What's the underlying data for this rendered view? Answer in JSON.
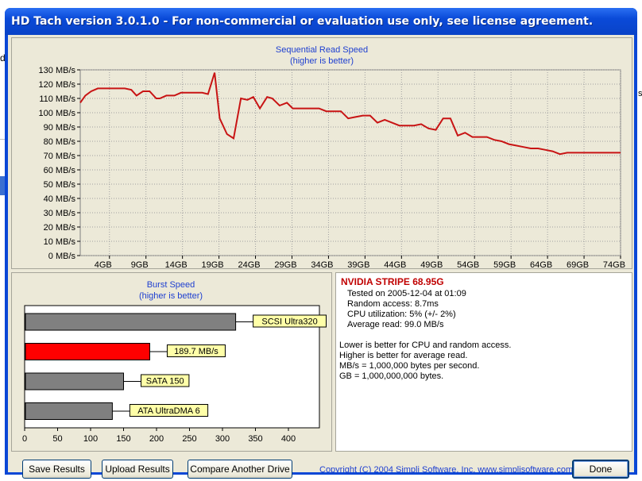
{
  "window": {
    "title": "HD Tach version 3.0.1.0  - For non-commercial or evaluation use only, see license agreement."
  },
  "sequential_chart": {
    "title": "Sequential Read Speed",
    "subtitle": "(higher is better)"
  },
  "burst_chart": {
    "title": "Burst Speed",
    "subtitle": "(higher is better)"
  },
  "chart_data": [
    {
      "type": "line",
      "title": "Sequential Read Speed",
      "subtitle": "(higher is better)",
      "xlabel": "",
      "ylabel": "",
      "xlim": [
        0,
        74
      ],
      "ylim": [
        0,
        130
      ],
      "x_ticks": [
        "4GB",
        "9GB",
        "14GB",
        "19GB",
        "24GB",
        "29GB",
        "34GB",
        "39GB",
        "44GB",
        "49GB",
        "54GB",
        "59GB",
        "64GB",
        "69GB",
        "74GB"
      ],
      "x_tick_values": [
        4,
        9,
        14,
        19,
        24,
        29,
        34,
        39,
        44,
        49,
        54,
        59,
        64,
        69,
        74
      ],
      "y_ticks": [
        "0 MB/s",
        "10 MB/s",
        "20 MB/s",
        "30 MB/s",
        "40 MB/s",
        "50 MB/s",
        "60 MB/s",
        "70 MB/s",
        "80 MB/s",
        "90 MB/s",
        "100 MB/s",
        "110 MB/s",
        "120 MB/s",
        "130 MB/s"
      ],
      "y_tick_values": [
        0,
        10,
        20,
        30,
        40,
        50,
        60,
        70,
        80,
        90,
        100,
        110,
        120,
        130
      ],
      "grid": true,
      "series": [
        {
          "color": "#c81414",
          "x": [
            0,
            0.7,
            1.5,
            2.4,
            3.3,
            4.3,
            5.3,
            6.1,
            7.0,
            7.7,
            8.6,
            9.5,
            10.4,
            10.9,
            11.8,
            12.9,
            13.8,
            14.7,
            15.7,
            16.7,
            17.5,
            18.4,
            19.1,
            20.1,
            21.0,
            22.0,
            22.9,
            23.7,
            24.6,
            25.6,
            26.3,
            27.3,
            28.3,
            29.1,
            30.0,
            30.9,
            31.9,
            32.7,
            33.7,
            34.7,
            35.7,
            36.7,
            37.7,
            38.7,
            39.7,
            40.7,
            41.7,
            42.7,
            43.7,
            44.7,
            45.7,
            46.7,
            47.7,
            48.7,
            49.7,
            50.7,
            51.7,
            52.7,
            53.7,
            54.7,
            55.7,
            56.7,
            57.7,
            58.7,
            59.7,
            60.7,
            61.7,
            62.7,
            63.7,
            64.7,
            65.7,
            66.7,
            67.7,
            68.7,
            69.7,
            70.7,
            71.7,
            72.7,
            73.7,
            74.0
          ],
          "y": [
            107,
            112,
            115,
            117,
            117,
            117,
            117,
            117,
            116,
            112,
            115,
            115,
            110,
            110,
            112,
            112,
            114,
            114,
            114,
            114,
            113,
            128,
            96,
            85,
            82,
            110,
            109,
            111,
            103,
            111,
            110,
            105,
            107,
            103,
            103,
            103,
            103,
            103,
            101,
            101,
            101,
            96,
            97,
            98,
            98,
            93,
            95,
            93,
            91,
            91,
            91,
            92,
            89,
            88,
            96,
            96,
            84,
            86,
            83,
            83,
            83,
            81,
            80,
            78,
            77,
            76,
            75,
            75,
            74,
            73,
            71,
            72,
            72,
            72,
            72,
            72,
            72,
            72,
            72,
            72
          ]
        }
      ]
    },
    {
      "type": "bar",
      "orientation": "horizontal",
      "title": "Burst Speed",
      "subtitle": "(higher is better)",
      "xlim": [
        0,
        450
      ],
      "x_ticks": [
        "0",
        "50",
        "100",
        "150",
        "200",
        "250",
        "300",
        "350",
        "400"
      ],
      "x_tick_values": [
        0,
        50,
        100,
        150,
        200,
        250,
        300,
        350,
        400
      ],
      "grid": false,
      "categories": [
        "SCSI Ultra320",
        "189.7 MB/s",
        "SATA 150",
        "ATA UltraDMA 6"
      ],
      "values": [
        320,
        189.7,
        150,
        133
      ],
      "bar_colors": [
        "#808080",
        "#ff0000",
        "#808080",
        "#808080"
      ],
      "label_bg": "#ffffa8"
    }
  ],
  "results": {
    "drive_name": "NVIDIA STRIPE 68.95G",
    "tested_on": "Tested on 2005-12-04 at 01:09",
    "random_access": "Random access: 8.7ms",
    "cpu_utilization": "CPU utilization: 5% (+/- 2%)",
    "average_read": "Average read: 99.0 MB/s",
    "notes": [
      "Lower is better for CPU and random access.",
      "Higher is better for average read.",
      "MB/s = 1,000,000 bytes per second.",
      "GB = 1,000,000,000 bytes."
    ]
  },
  "buttons": {
    "save": "Save Results",
    "upload": "Upload Results",
    "compare": "Compare Another Drive",
    "done": "Done"
  },
  "copyright": "Copyright (C) 2004 Simpli Software, Inc. www.simplisoftware.com",
  "background": {
    "left_fragment": "d",
    "right_fragment": "s"
  },
  "colors": {
    "title_bar": "#0a4ad8",
    "dialog_bg": "#ece9d8",
    "chart_line": "#c81414",
    "chart_title_text": "#1e3fd0",
    "drive_name_text": "#c00000"
  }
}
